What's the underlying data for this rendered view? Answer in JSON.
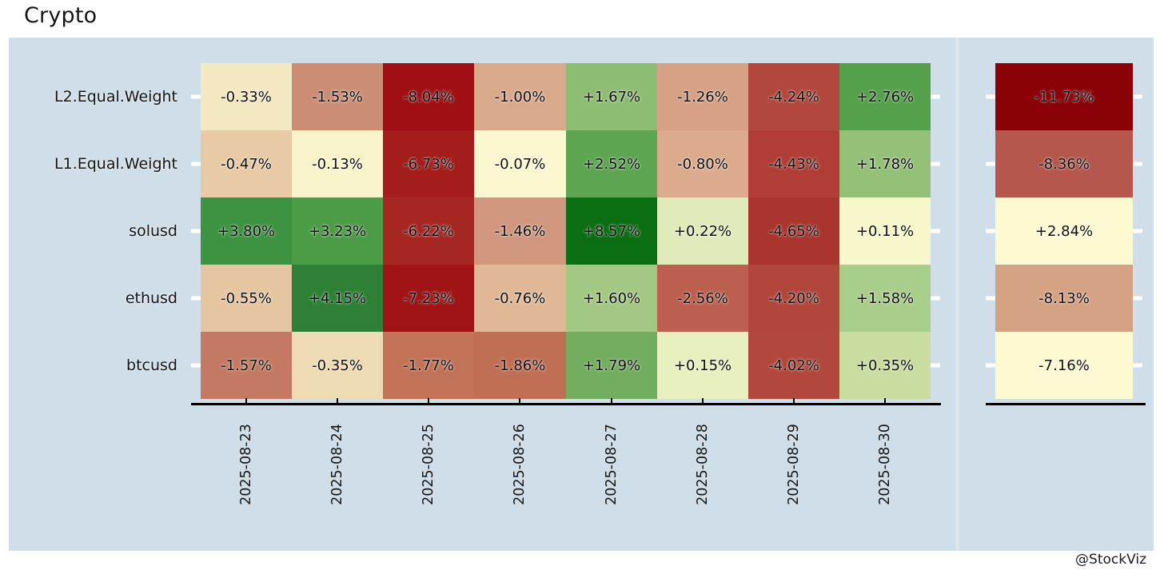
{
  "page": {
    "title": "Crypto",
    "watermark": "@StockViz"
  },
  "colors": {
    "panel_bg": "#cfdee8",
    "facet_divider": "#dce6ed",
    "axis_line": "#000000",
    "tick_mark": "#ffffff",
    "label_text": "#161616",
    "cell_text": "#101010"
  },
  "chart_data": {
    "type": "heatmap",
    "title": "Crypto",
    "value_format": "percent-daily-return",
    "legend": "none",
    "columns": [
      "2025-08-23",
      "2025-08-24",
      "2025-08-25",
      "2025-08-26",
      "2025-08-27",
      "2025-08-28",
      "2025-08-29",
      "2025-08-30"
    ],
    "rows": [
      {
        "label": "L2.Equal.Weight",
        "daily": [
          "-0.33%",
          "-1.53%",
          "-8.04%",
          "-1.00%",
          "+1.67%",
          "-1.26%",
          "-4.24%",
          "+2.76%"
        ],
        "daily_colors": [
          "#f3e8c2",
          "#cb8e75",
          "#a00f13",
          "#d9a98c",
          "#8dbc73",
          "#d6a185",
          "#b2473d",
          "#55a04b"
        ],
        "total": "-11.73%",
        "total_color": "#8b0108"
      },
      {
        "label": "L1.Equal.Weight",
        "daily": [
          "-0.47%",
          "-0.13%",
          "-6.73%",
          "-0.07%",
          "+2.52%",
          "-0.80%",
          "-4.43%",
          "+1.78%"
        ],
        "daily_colors": [
          "#e8cba6",
          "#f9f3cb",
          "#a41d1a",
          "#fbf7d1",
          "#5da551",
          "#dcaa8d",
          "#b03e36",
          "#94c077"
        ],
        "total": "-8.36%",
        "total_color": "#b5574c"
      },
      {
        "label": "solusd",
        "daily": [
          "+3.80%",
          "+3.23%",
          "-6.22%",
          "-1.46%",
          "+8.57%",
          "+0.22%",
          "-4.65%",
          "+0.11%"
        ],
        "daily_colors": [
          "#3e9342",
          "#4c9c47",
          "#a62622",
          "#d0977e",
          "#0c6e12",
          "#dfebba",
          "#aa352e",
          "#f8f6cb"
        ],
        "total": "+2.84%",
        "total_color": "#fdf9d2"
      },
      {
        "label": "ethusd",
        "daily": [
          "-0.55%",
          "+4.15%",
          "-7.23%",
          "-0.76%",
          "+1.60%",
          "-2.56%",
          "-4.20%",
          "+1.58%"
        ],
        "daily_colors": [
          "#e6c5a1",
          "#2d8034",
          "#a11416",
          "#e1b895",
          "#a2c884",
          "#bd5f4f",
          "#b2463c",
          "#a9cd8a"
        ],
        "total": "-8.13%",
        "total_color": "#d6a284"
      },
      {
        "label": "btcusd",
        "daily": [
          "-1.57%",
          "-0.35%",
          "-1.77%",
          "-1.86%",
          "+1.79%",
          "+0.15%",
          "-4.02%",
          "+0.35%"
        ],
        "daily_colors": [
          "#c47a62",
          "#eedbb4",
          "#c27257",
          "#c06f55",
          "#73ad5f",
          "#e9f0bf",
          "#b2483d",
          "#c9dda1"
        ],
        "total": "-7.16%",
        "total_color": "#fdf9d2"
      }
    ]
  }
}
